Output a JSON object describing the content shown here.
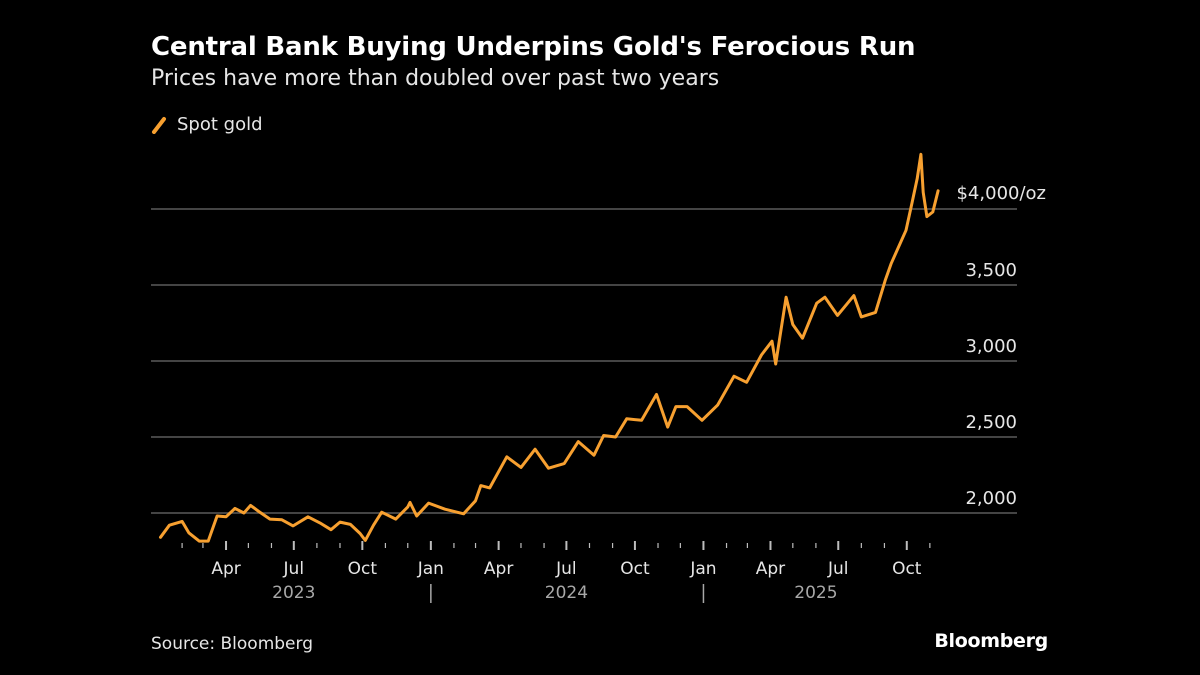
{
  "title": "Central Bank Buying Underpins Gold's Ferocious Run",
  "subtitle": "Prices have more than doubled over past two years",
  "source": "Source: Bloomberg",
  "logo": "Bloomberg",
  "colors": {
    "series": "#f7a030",
    "grid": "#5a5a5a",
    "background": "#000000"
  },
  "chart_data": {
    "type": "line",
    "title": "Central Bank Buying Underpins Gold's Ferocious Run",
    "subtitle": "Prices have more than doubled over past two years",
    "legend": {
      "placement": "top-left",
      "entries": [
        "Spot gold"
      ]
    },
    "grid": true,
    "ylim": [
      1850,
      4400
    ],
    "y_ticks": [
      {
        "value": 4000,
        "label": "$4,000/oz"
      },
      {
        "value": 3500,
        "label": "3,500"
      },
      {
        "value": 3000,
        "label": "3,000"
      },
      {
        "value": 2500,
        "label": "2,500"
      },
      {
        "value": 2000,
        "label": "2,000"
      }
    ],
    "x_ticks": [
      {
        "date": "2023-04-01",
        "label": "Apr"
      },
      {
        "date": "2023-07-01",
        "label": "Jul"
      },
      {
        "date": "2023-10-01",
        "label": "Oct"
      },
      {
        "date": "2024-01-01",
        "label": "Jan"
      },
      {
        "date": "2024-04-01",
        "label": "Apr"
      },
      {
        "date": "2024-07-01",
        "label": "Jul"
      },
      {
        "date": "2024-10-01",
        "label": "Oct"
      },
      {
        "date": "2025-01-01",
        "label": "Jan"
      },
      {
        "date": "2025-04-01",
        "label": "Apr"
      },
      {
        "date": "2025-07-01",
        "label": "Jul"
      },
      {
        "date": "2025-10-01",
        "label": "Oct"
      }
    ],
    "year_labels": [
      {
        "date": "2023-07-01",
        "label": "2023"
      },
      {
        "date": "2024-07-01",
        "label": "2024"
      },
      {
        "date": "2025-06-01",
        "label": "2025"
      }
    ],
    "year_separators": [
      "2024-01-01",
      "2025-01-01"
    ],
    "series": [
      {
        "name": "Spot gold",
        "points": [
          [
            "2023-01-03",
            1840
          ],
          [
            "2023-01-15",
            1920
          ],
          [
            "2023-02-01",
            1945
          ],
          [
            "2023-02-10",
            1870
          ],
          [
            "2023-02-24",
            1815
          ],
          [
            "2023-03-08",
            1815
          ],
          [
            "2023-03-20",
            1980
          ],
          [
            "2023-04-01",
            1975
          ],
          [
            "2023-04-13",
            2030
          ],
          [
            "2023-04-25",
            2000
          ],
          [
            "2023-05-04",
            2050
          ],
          [
            "2023-05-15",
            2010
          ],
          [
            "2023-05-30",
            1960
          ],
          [
            "2023-06-15",
            1955
          ],
          [
            "2023-06-30",
            1915
          ],
          [
            "2023-07-20",
            1975
          ],
          [
            "2023-08-05",
            1935
          ],
          [
            "2023-08-20",
            1890
          ],
          [
            "2023-09-01",
            1940
          ],
          [
            "2023-09-15",
            1925
          ],
          [
            "2023-09-28",
            1865
          ],
          [
            "2023-10-05",
            1820
          ],
          [
            "2023-10-16",
            1920
          ],
          [
            "2023-10-27",
            2005
          ],
          [
            "2023-11-15",
            1960
          ],
          [
            "2023-12-01",
            2040
          ],
          [
            "2023-12-04",
            2070
          ],
          [
            "2023-12-13",
            1980
          ],
          [
            "2023-12-29",
            2065
          ],
          [
            "2024-01-20",
            2025
          ],
          [
            "2024-02-14",
            1995
          ],
          [
            "2024-03-01",
            2080
          ],
          [
            "2024-03-08",
            2180
          ],
          [
            "2024-03-20",
            2165
          ],
          [
            "2024-04-12",
            2370
          ],
          [
            "2024-05-01",
            2300
          ],
          [
            "2024-05-20",
            2420
          ],
          [
            "2024-06-07",
            2295
          ],
          [
            "2024-06-28",
            2325
          ],
          [
            "2024-07-17",
            2470
          ],
          [
            "2024-08-07",
            2380
          ],
          [
            "2024-08-20",
            2510
          ],
          [
            "2024-09-05",
            2500
          ],
          [
            "2024-09-20",
            2620
          ],
          [
            "2024-10-10",
            2610
          ],
          [
            "2024-10-30",
            2780
          ],
          [
            "2024-11-14",
            2565
          ],
          [
            "2024-11-25",
            2700
          ],
          [
            "2024-12-10",
            2700
          ],
          [
            "2024-12-30",
            2610
          ],
          [
            "2025-01-20",
            2710
          ],
          [
            "2025-02-11",
            2900
          ],
          [
            "2025-02-28",
            2860
          ],
          [
            "2025-03-20",
            3040
          ],
          [
            "2025-04-03",
            3130
          ],
          [
            "2025-04-08",
            2980
          ],
          [
            "2025-04-22",
            3420
          ],
          [
            "2025-05-01",
            3240
          ],
          [
            "2025-05-14",
            3150
          ],
          [
            "2025-06-02",
            3380
          ],
          [
            "2025-06-13",
            3420
          ],
          [
            "2025-06-30",
            3300
          ],
          [
            "2025-07-22",
            3430
          ],
          [
            "2025-08-01",
            3290
          ],
          [
            "2025-08-20",
            3320
          ],
          [
            "2025-09-02",
            3530
          ],
          [
            "2025-09-10",
            3640
          ],
          [
            "2025-09-30",
            3860
          ],
          [
            "2025-10-08",
            4040
          ],
          [
            "2025-10-15",
            4200
          ],
          [
            "2025-10-20",
            4360
          ],
          [
            "2025-10-23",
            4110
          ],
          [
            "2025-10-28",
            3950
          ],
          [
            "2025-11-05",
            3980
          ],
          [
            "2025-11-12",
            4120
          ]
        ]
      }
    ]
  }
}
